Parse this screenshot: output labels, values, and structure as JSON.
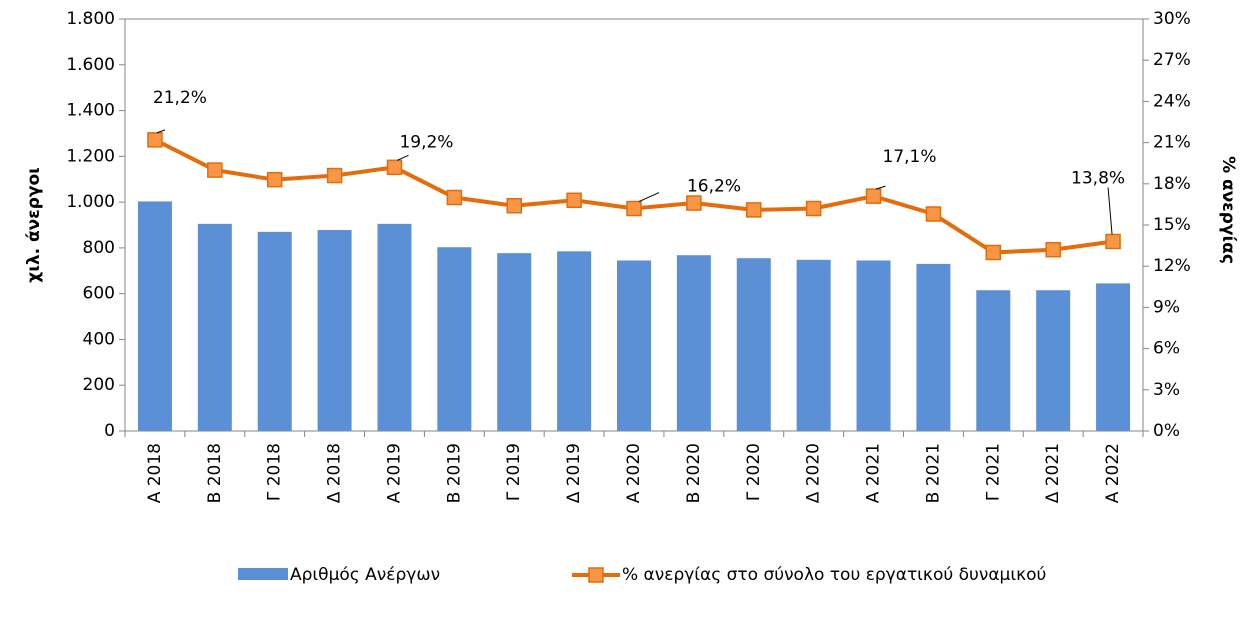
{
  "chart_data": {
    "type": "bar_line",
    "categories": [
      "Α 2018",
      "Β 2018",
      "Γ 2018",
      "Δ 2018",
      "Α 2019",
      "Β 2019",
      "Γ 2019",
      "Δ 2019",
      "Α 2020",
      "Β 2020",
      "Γ 2020",
      "Δ 2020",
      "Α 2021",
      "Β 2021",
      "Γ 2021",
      "Δ 2021",
      "Α 2022"
    ],
    "series": [
      {
        "name": "Αριθμός Ανέργων",
        "type": "bar",
        "color": "#5b8fd6",
        "values": [
          1003,
          905,
          870,
          878,
          905,
          803,
          777,
          785,
          745,
          768,
          755,
          748,
          745,
          730,
          615,
          615,
          645
        ]
      },
      {
        "name": "% ανεργίας στο σύνολο του εργατικού δυναμικού",
        "type": "line",
        "axis": "y2",
        "color": "#e46c0a",
        "marker_color": "#f79646",
        "values": [
          21.2,
          19.0,
          18.3,
          18.6,
          19.2,
          17.0,
          16.4,
          16.8,
          16.2,
          16.6,
          16.1,
          16.2,
          17.1,
          15.8,
          13.0,
          13.2,
          13.8
        ],
        "value_labels": [
          "21,2%",
          null,
          null,
          null,
          "19,2%",
          null,
          null,
          null,
          "16,2%",
          null,
          null,
          null,
          "17,1%",
          null,
          null,
          null,
          "13,8%"
        ]
      }
    ],
    "ylabel": "χιλ. άνεργοι",
    "y2label": "% ανεργίας",
    "ylim": [
      0,
      1800
    ],
    "yticks": [
      0,
      200,
      400,
      600,
      800,
      {
        "value": 1000,
        "label": "1.000"
      },
      {
        "value": 1200,
        "label": "1.200"
      },
      {
        "value": 1400,
        "label": "1.400"
      },
      {
        "value": 1600,
        "label": "1.600"
      },
      {
        "value": 1800,
        "label": "1.800"
      }
    ],
    "y2lim": [
      0,
      30
    ],
    "y2ticks": [
      {
        "value": 0,
        "label": "0%"
      },
      {
        "value": 3,
        "label": "3%"
      },
      {
        "value": 6,
        "label": "6%"
      },
      {
        "value": 9,
        "label": "9%"
      },
      {
        "value": 12,
        "label": "12%"
      },
      {
        "value": 15,
        "label": "15%"
      },
      {
        "value": 18,
        "label": "18%"
      },
      {
        "value": 21,
        "label": "21%"
      },
      {
        "value": 24,
        "label": "24%"
      },
      {
        "value": 27,
        "label": "27%"
      },
      {
        "value": 30,
        "label": "30%"
      }
    ],
    "legend": "bottom"
  }
}
